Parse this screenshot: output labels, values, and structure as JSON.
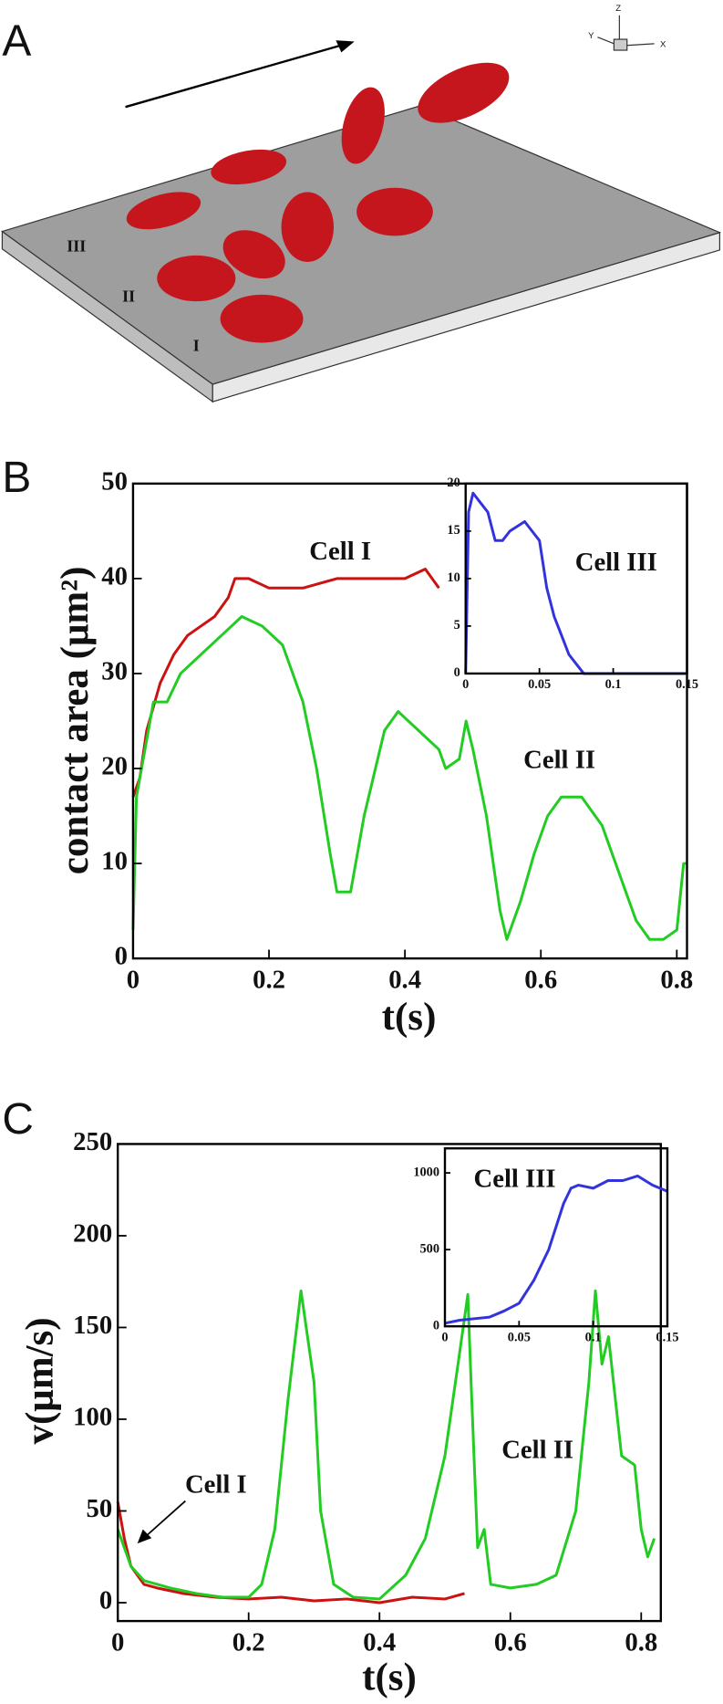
{
  "panel_a": {
    "panel": "A",
    "cell_labels": [
      "III",
      "II",
      "I"
    ],
    "axes_triad": [
      "Z",
      "Y",
      "X"
    ]
  },
  "chart_data": [
    {
      "type": "line",
      "panel": "B",
      "xlabel": "t(s)",
      "ylabel": "contact area (μm²)",
      "xlim": [
        0,
        0.815
      ],
      "ylim": [
        0,
        50
      ],
      "xticks": [
        0,
        0.2,
        0.4,
        0.6,
        0.8
      ],
      "yticks": [
        0,
        10,
        20,
        30,
        40,
        50
      ],
      "series": [
        {
          "name": "Cell I",
          "color": "#cc1111",
          "x": [
            0,
            0.01,
            0.02,
            0.04,
            0.06,
            0.08,
            0.1,
            0.12,
            0.14,
            0.15,
            0.17,
            0.2,
            0.25,
            0.3,
            0.35,
            0.4,
            0.43,
            0.45
          ],
          "values": [
            17,
            19,
            24,
            29,
            32,
            34,
            35,
            36,
            38,
            40,
            40,
            39,
            39,
            40,
            40,
            40,
            41,
            39
          ]
        },
        {
          "name": "Cell II",
          "color": "#22cc22",
          "x": [
            0,
            0.005,
            0.02,
            0.03,
            0.05,
            0.07,
            0.1,
            0.13,
            0.16,
            0.19,
            0.22,
            0.25,
            0.27,
            0.29,
            0.3,
            0.32,
            0.34,
            0.37,
            0.39,
            0.42,
            0.45,
            0.46,
            0.48,
            0.49,
            0.5,
            0.52,
            0.54,
            0.55,
            0.57,
            0.59,
            0.61,
            0.63,
            0.66,
            0.69,
            0.72,
            0.74,
            0.76,
            0.78,
            0.8,
            0.81,
            0.815
          ],
          "values": [
            3,
            17,
            23,
            27,
            27,
            30,
            32,
            34,
            36,
            35,
            33,
            27,
            20,
            11,
            7,
            7,
            15,
            24,
            26,
            24,
            22,
            20,
            21,
            25,
            22,
            15,
            5,
            2,
            6,
            11,
            15,
            17,
            17,
            14,
            8,
            4,
            2,
            2,
            3,
            10,
            10
          ]
        }
      ]
    },
    {
      "type": "line",
      "xlim": [
        0,
        0.15
      ],
      "ylim": [
        0,
        20
      ],
      "xticks": [
        0,
        0.05,
        0.1,
        0.15
      ],
      "yticks": [
        0,
        5,
        10,
        15,
        20
      ],
      "series": [
        {
          "name": "Cell III",
          "color": "#3333dd",
          "x": [
            0,
            0.002,
            0.005,
            0.01,
            0.015,
            0.02,
            0.025,
            0.03,
            0.04,
            0.045,
            0.05,
            0.055,
            0.06,
            0.065,
            0.07,
            0.075,
            0.08,
            0.15
          ],
          "values": [
            0,
            17,
            19,
            18,
            17,
            14,
            14,
            15,
            16,
            15,
            14,
            9,
            6,
            4,
            2,
            1,
            0,
            0
          ]
        }
      ]
    },
    {
      "type": "line",
      "panel": "C",
      "xlabel": "t(s)",
      "ylabel": "v(μm/s)",
      "xlim": [
        0,
        0.83
      ],
      "ylim": [
        -10,
        250
      ],
      "xticks": [
        0,
        0.2,
        0.4,
        0.6,
        0.8
      ],
      "yticks": [
        0,
        50,
        100,
        150,
        200,
        250
      ],
      "series": [
        {
          "name": "Cell I",
          "color": "#cc1111",
          "x": [
            0,
            0.01,
            0.02,
            0.04,
            0.06,
            0.1,
            0.15,
            0.2,
            0.25,
            0.3,
            0.35,
            0.4,
            0.45,
            0.5,
            0.53
          ],
          "values": [
            55,
            35,
            20,
            10,
            8,
            5,
            3,
            2,
            3,
            1,
            2,
            0,
            3,
            2,
            5
          ]
        },
        {
          "name": "Cell II",
          "color": "#22cc22",
          "x": [
            0,
            0.02,
            0.04,
            0.08,
            0.12,
            0.16,
            0.2,
            0.22,
            0.24,
            0.26,
            0.28,
            0.3,
            0.31,
            0.33,
            0.36,
            0.4,
            0.44,
            0.47,
            0.5,
            0.52,
            0.535,
            0.54,
            0.55,
            0.56,
            0.57,
            0.6,
            0.64,
            0.67,
            0.7,
            0.72,
            0.73,
            0.74,
            0.75,
            0.77,
            0.79,
            0.8,
            0.81,
            0.82
          ],
          "values": [
            40,
            20,
            12,
            8,
            5,
            3,
            3,
            10,
            40,
            110,
            170,
            120,
            50,
            10,
            3,
            2,
            15,
            35,
            80,
            130,
            168,
            120,
            30,
            40,
            10,
            8,
            10,
            15,
            50,
            120,
            170,
            130,
            145,
            80,
            75,
            40,
            25,
            35
          ]
        }
      ]
    },
    {
      "type": "line",
      "xlim": [
        0,
        0.15
      ],
      "ylim": [
        0,
        1160
      ],
      "xticks": [
        0,
        0.05,
        0.1,
        0.15
      ],
      "yticks": [
        0,
        500,
        1000
      ],
      "series": [
        {
          "name": "Cell III",
          "color": "#3333dd",
          "x": [
            0,
            0.01,
            0.02,
            0.03,
            0.04,
            0.05,
            0.06,
            0.07,
            0.08,
            0.085,
            0.09,
            0.1,
            0.11,
            0.12,
            0.13,
            0.14,
            0.15
          ],
          "values": [
            20,
            40,
            50,
            60,
            100,
            150,
            300,
            500,
            800,
            900,
            920,
            900,
            950,
            950,
            980,
            920,
            880
          ]
        }
      ]
    }
  ]
}
